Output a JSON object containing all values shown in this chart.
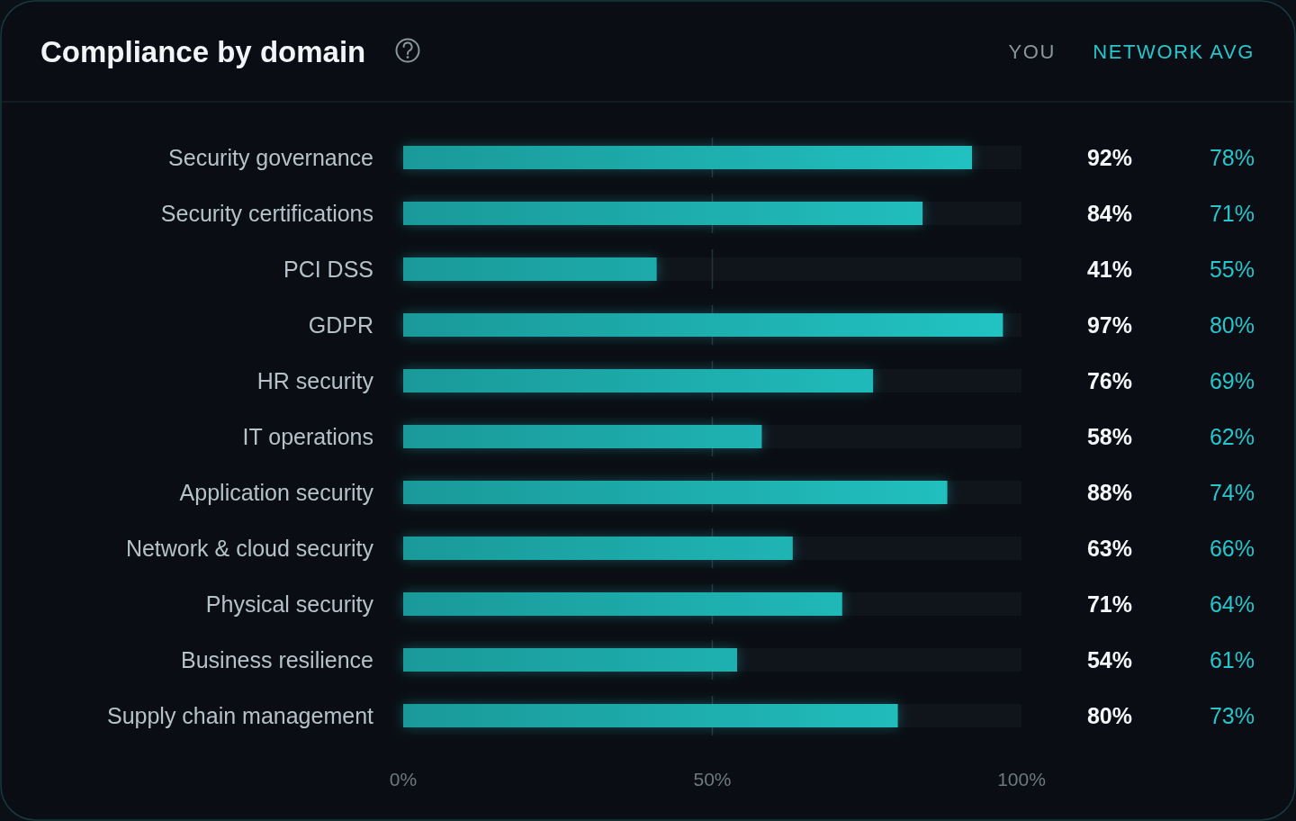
{
  "chart_data": [
    {
      "type": "bar",
      "orientation": "horizontal",
      "title": "Compliance by domain",
      "categories": [
        "Security governance",
        "Security certifications",
        "PCI DSS",
        "GDPR",
        "HR security",
        "IT operations",
        "Application security",
        "Network & cloud security",
        "Physical security",
        "Business resilience",
        "Supply chain management"
      ],
      "series": [
        {
          "name": "YOU",
          "color": "#22c4c4",
          "values": [
            92,
            84,
            41,
            97,
            76,
            58,
            88,
            63,
            71,
            54,
            80
          ],
          "value_labels": [
            "92%",
            "84%",
            "41%",
            "97%",
            "76%",
            "58%",
            "88%",
            "63%",
            "71%",
            "54%",
            "80%"
          ]
        }
      ],
      "xlim": [
        0,
        100
      ],
      "xticks": [
        {
          "value": 0,
          "label": "0%"
        },
        {
          "value": 50,
          "label": "50%"
        },
        {
          "value": 100,
          "label": "100%"
        }
      ],
      "ref_lines": [
        {
          "axis": "x",
          "value": 50,
          "line_style": "dashed"
        }
      ],
      "legend": "top right"
    },
    {
      "type": "other",
      "title": "NETWORK AVG",
      "color": "#26c6cc",
      "values": [
        78,
        71,
        55,
        80,
        69,
        62,
        74,
        66,
        64,
        61,
        73
      ],
      "value_labels": [
        "78%",
        "71%",
        "55%",
        "80%",
        "69%",
        "62%",
        "74%",
        "66%",
        "64%",
        "61%",
        "73%"
      ]
    }
  ]
}
